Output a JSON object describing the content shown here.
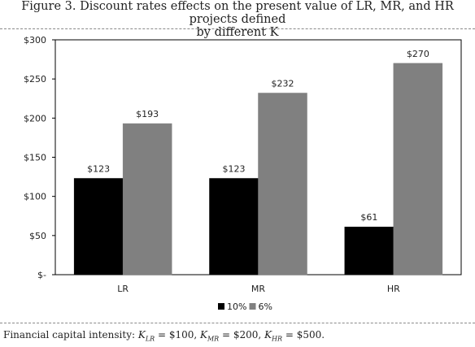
{
  "title_line1": "Figure 3. Discount rates effects on the present value of LR, MR, and HR projects defined",
  "title_line2": "by different K",
  "footnote": {
    "prefix": "Financial capital intensity: ",
    "k": "K",
    "sub_lr": "LR",
    "sub_mr": "MR",
    "sub_hr": "HR",
    "v_lr": " = $100, ",
    "v_mr": " = $200, ",
    "v_hr": " = $500."
  },
  "chart_data": {
    "type": "bar",
    "title": "",
    "xlabel": "",
    "ylabel": "",
    "categories": [
      "LR",
      "MR",
      "HR"
    ],
    "series": [
      {
        "name": "10%",
        "values": [
          123,
          123,
          61
        ],
        "labels": [
          "$123",
          "$123",
          "$61"
        ],
        "color": "#000000"
      },
      {
        "name": "6%",
        "values": [
          193,
          232,
          270
        ],
        "labels": [
          "$193",
          "$232",
          "$270"
        ],
        "color": "#808080"
      }
    ],
    "ylim": [
      0,
      300
    ],
    "yticks": [
      0,
      50,
      100,
      150,
      200,
      250,
      300
    ],
    "ytick_labels": [
      "$-",
      "$50",
      "$100",
      "$150",
      "$200",
      "$250",
      "$300"
    ],
    "grid": false,
    "legend_position": "bottom"
  }
}
